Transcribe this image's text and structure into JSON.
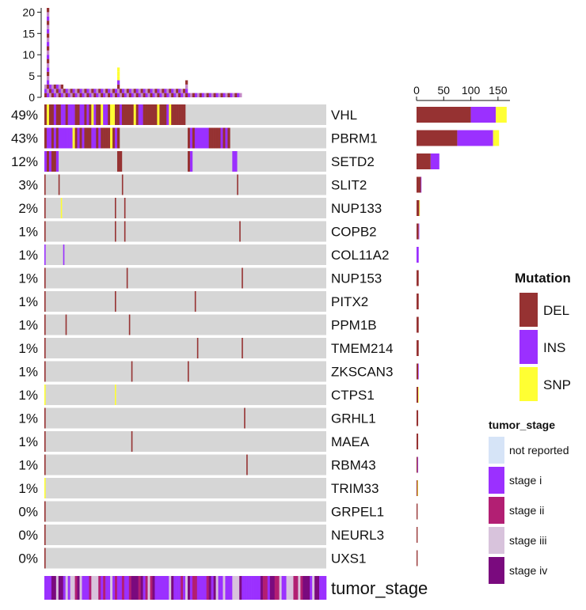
{
  "chart_data": {
    "type": "oncoprint",
    "colors": {
      "DEL": "#963232",
      "INS": "#9b30ff",
      "SNP": "#ffff33",
      "background": "#d6d6d6",
      "not reported": "#d6e4f7",
      "stage i": "#9b30ff",
      "stage ii": "#b21f73",
      "stage iii": "#d8c3dc",
      "stage iv": "#7a0a7e"
    },
    "top_axis": {
      "ticks": [
        "0",
        "5",
        "10",
        "15",
        "20"
      ],
      "max": 21
    },
    "right_axis": {
      "ticks": [
        "0",
        "50",
        "100",
        "150"
      ],
      "max": 175
    },
    "genes": [
      {
        "name": "VHL",
        "pct": "49%",
        "DEL": 100,
        "INS": 46,
        "SNP": 20
      },
      {
        "name": "PBRM1",
        "pct": "43%",
        "DEL": 75,
        "INS": 66,
        "SNP": 11
      },
      {
        "name": "SETD2",
        "pct": "12%",
        "DEL": 26,
        "INS": 16,
        "SNP": 0
      },
      {
        "name": "SLIT2",
        "pct": "3%",
        "DEL": 8,
        "INS": 1,
        "SNP": 0
      },
      {
        "name": "NUP133",
        "pct": "2%",
        "DEL": 5,
        "INS": 0,
        "SNP": 1
      },
      {
        "name": "COPB2",
        "pct": "1%",
        "DEL": 4,
        "INS": 1,
        "SNP": 0
      },
      {
        "name": "COL11A2",
        "pct": "1%",
        "DEL": 0,
        "INS": 4,
        "SNP": 0
      },
      {
        "name": "NUP153",
        "pct": "1%",
        "DEL": 4,
        "INS": 0,
        "SNP": 0
      },
      {
        "name": "PITX2",
        "pct": "1%",
        "DEL": 4,
        "INS": 0,
        "SNP": 0
      },
      {
        "name": "PPM1B",
        "pct": "1%",
        "DEL": 4,
        "INS": 0,
        "SNP": 0
      },
      {
        "name": "TMEM214",
        "pct": "1%",
        "DEL": 4,
        "INS": 0,
        "SNP": 0
      },
      {
        "name": "ZKSCAN3",
        "pct": "1%",
        "DEL": 3,
        "INS": 1,
        "SNP": 0
      },
      {
        "name": "CTPS1",
        "pct": "1%",
        "DEL": 3,
        "INS": 0,
        "SNP": 1
      },
      {
        "name": "GRHL1",
        "pct": "1%",
        "DEL": 3,
        "INS": 0,
        "SNP": 0
      },
      {
        "name": "MAEA",
        "pct": "1%",
        "DEL": 3,
        "INS": 0,
        "SNP": 0
      },
      {
        "name": "RBM43",
        "pct": "1%",
        "DEL": 2,
        "INS": 1,
        "SNP": 0
      },
      {
        "name": "TRIM33",
        "pct": "1%",
        "DEL": 2,
        "INS": 0,
        "SNP": 1
      },
      {
        "name": "GRPEL1",
        "pct": "0%",
        "DEL": 2,
        "INS": 0,
        "SNP": 0
      },
      {
        "name": "NEURL3",
        "pct": "0%",
        "DEL": 2,
        "INS": 0,
        "SNP": 0
      },
      {
        "name": "UXS1",
        "pct": "0%",
        "DEL": 2,
        "INS": 0,
        "SNP": 0
      }
    ],
    "annotation_label": "tumor_stage",
    "legend": {
      "mutation_title": "Mutation",
      "mutation_items": [
        "DEL",
        "INS",
        "SNP"
      ],
      "stage_title": "tumor_stage",
      "stage_items": [
        "not reported",
        "stage i",
        "stage ii",
        "stage iii",
        "stage iv"
      ]
    }
  }
}
